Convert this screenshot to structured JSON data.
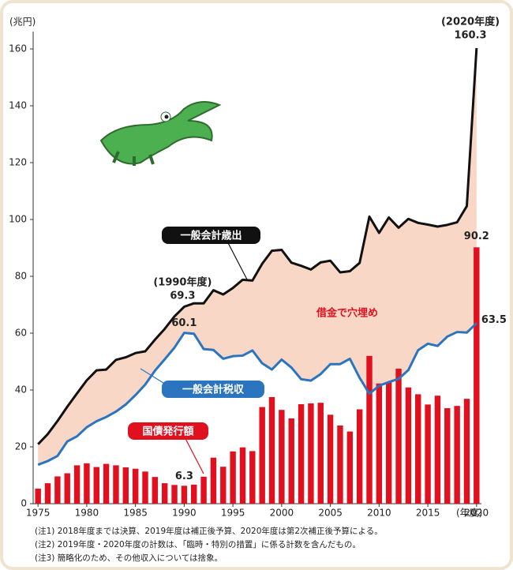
{
  "chart_data": {
    "type": "combo",
    "y_label": "(兆円)",
    "x_label": "(年度)",
    "x": [
      1975,
      1976,
      1977,
      1978,
      1979,
      1980,
      1981,
      1982,
      1983,
      1984,
      1985,
      1986,
      1987,
      1988,
      1989,
      1990,
      1991,
      1992,
      1993,
      1994,
      1995,
      1996,
      1997,
      1998,
      1999,
      2000,
      2001,
      2002,
      2003,
      2004,
      2005,
      2006,
      2007,
      2008,
      2009,
      2010,
      2011,
      2012,
      2013,
      2014,
      2015,
      2016,
      2017,
      2018,
      2019,
      2020
    ],
    "series": [
      {
        "name": "一般会計歳出",
        "type": "line",
        "color": "#111111",
        "values": [
          20.9,
          24.5,
          29.1,
          34.1,
          38.8,
          43.4,
          46.9,
          47.2,
          50.6,
          51.5,
          53.0,
          53.6,
          57.7,
          61.5,
          65.9,
          69.3,
          70.5,
          70.5,
          75.1,
          73.6,
          75.9,
          78.8,
          78.5,
          84.4,
          89.0,
          89.3,
          84.8,
          83.7,
          82.4,
          84.9,
          85.5,
          81.4,
          81.8,
          84.7,
          101.0,
          95.3,
          100.7,
          97.1,
          100.2,
          98.8,
          98.2,
          97.5,
          98.1,
          99.0,
          104.7,
          160.3
        ]
      },
      {
        "name": "一般会計税収",
        "type": "line",
        "color": "#2a74c0",
        "values": [
          13.7,
          15.0,
          16.8,
          21.9,
          23.7,
          26.9,
          29.0,
          30.5,
          32.4,
          34.9,
          38.2,
          41.9,
          46.8,
          50.8,
          54.9,
          60.1,
          59.8,
          54.4,
          54.1,
          51.0,
          51.9,
          52.1,
          53.9,
          49.4,
          47.2,
          50.7,
          47.9,
          43.8,
          43.3,
          45.6,
          49.1,
          49.1,
          51.0,
          44.3,
          38.7,
          41.5,
          42.8,
          43.9,
          47.0,
          54.0,
          56.3,
          55.5,
          58.8,
          60.4,
          60.2,
          63.5
        ]
      },
      {
        "name": "国債発行額",
        "type": "bar",
        "color": "#e0101e",
        "values": [
          5.3,
          7.2,
          9.6,
          10.7,
          13.5,
          14.2,
          12.9,
          14.0,
          13.5,
          12.8,
          12.3,
          11.3,
          9.4,
          7.2,
          6.6,
          6.3,
          6.7,
          9.5,
          16.2,
          13.0,
          18.4,
          19.8,
          18.5,
          34.0,
          37.5,
          33.0,
          30.0,
          35.0,
          35.3,
          35.5,
          31.3,
          27.5,
          25.4,
          33.2,
          52.0,
          42.3,
          42.8,
          47.5,
          40.9,
          38.5,
          34.9,
          38.0,
          33.6,
          34.4,
          36.9,
          90.2
        ]
      }
    ],
    "area_color": "#f9d7c6",
    "annotations": [
      "(2020年度)",
      "(1990年度)",
      "借金で穴埋め"
    ],
    "xlim": [
      1974.5,
      2020.5
    ],
    "xticks": [
      1975,
      1980,
      1985,
      1990,
      1995,
      2000,
      2005,
      2010,
      2015,
      2020
    ],
    "ylim": [
      0,
      160
    ],
    "yticks": [
      0,
      20,
      40,
      60,
      80,
      100,
      120,
      140,
      160
    ],
    "notes": [
      "(注1) 2018年度までは決算、2019年度は補正後予算、2020年度は第2次補正後予算による。",
      "(注2) 2019年度・2020年度の計数は、「臨時・特別の措置」に係る計数を含んだもの。",
      "(注3) 簡略化のため、その他収入については捨象。"
    ]
  }
}
